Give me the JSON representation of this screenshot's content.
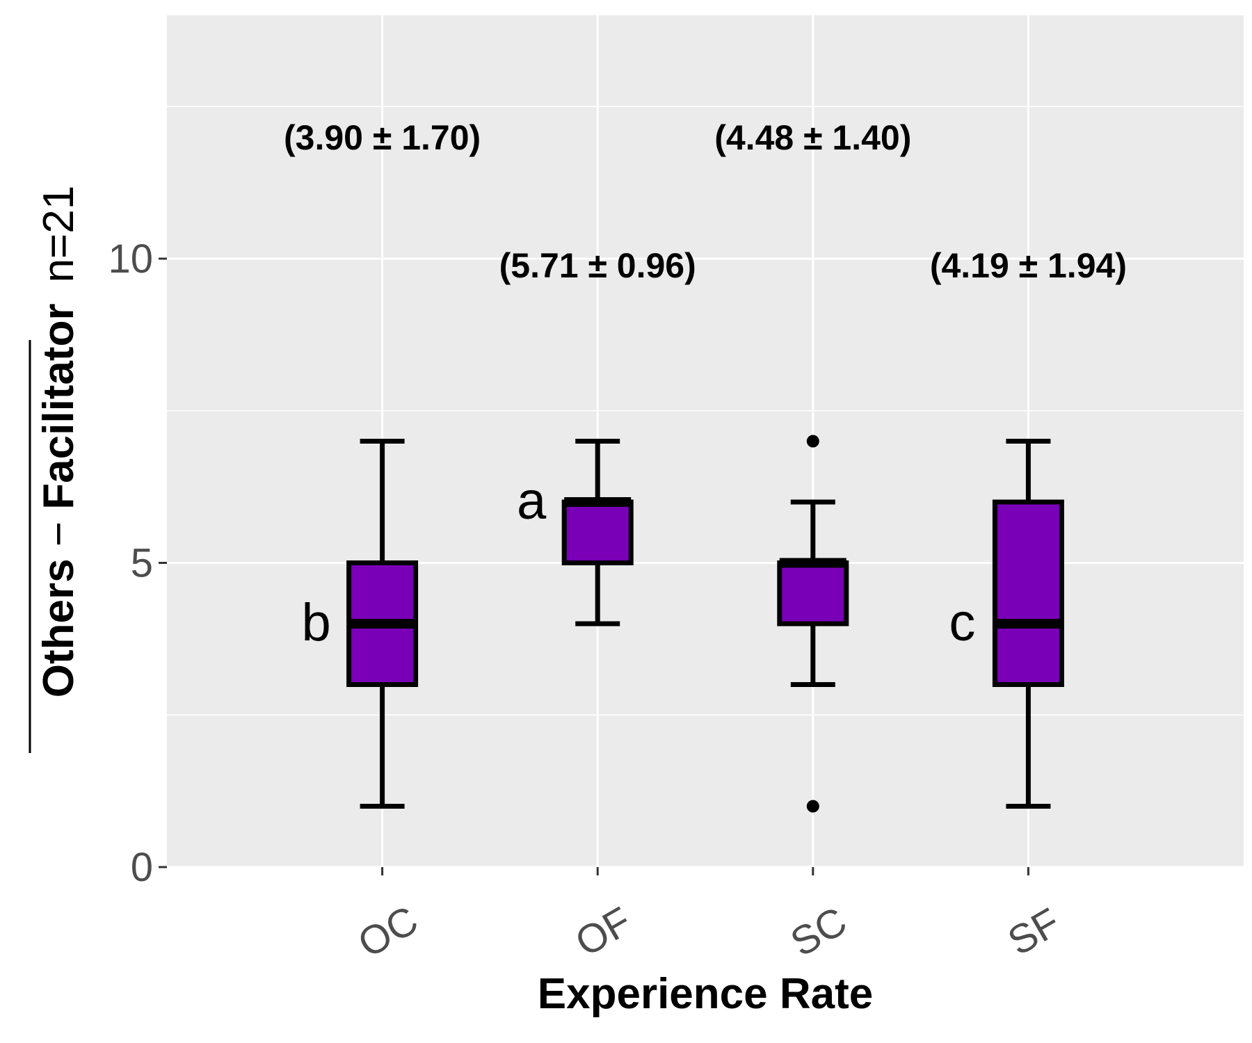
{
  "chart_data": {
    "type": "box",
    "xlabel": "Experience Rate",
    "ylabel_prefix": "Others",
    "ylabel_sep": " − ",
    "ylabel_main": "Facilitator",
    "ylabel_n": "n=21",
    "ylim": [
      0,
      14
    ],
    "yticks": [
      0,
      5,
      10
    ],
    "grid": true,
    "categories": [
      "OC",
      "OF",
      "SC",
      "SF"
    ],
    "boxes": [
      {
        "category": "OC",
        "whisker_low": 1,
        "q1": 3,
        "median": 4,
        "q3": 5,
        "whisker_high": 7,
        "outliers": [],
        "label": "(3.90 ± 1.70)",
        "label_y": 12,
        "letter": "b"
      },
      {
        "category": "OF",
        "whisker_low": 4,
        "q1": 5,
        "median": 6,
        "q3": 6,
        "whisker_high": 7,
        "outliers": [],
        "label": "(5.71 ± 0.96)",
        "label_y": 9.9,
        "letter": "a"
      },
      {
        "category": "SC",
        "whisker_low": 3,
        "q1": 4,
        "median": 5,
        "q3": 5,
        "whisker_high": 6,
        "outliers": [
          1,
          7
        ],
        "label": "(4.48 ± 1.40)",
        "label_y": 12,
        "letter": ""
      },
      {
        "category": "SF",
        "whisker_low": 1,
        "q1": 3,
        "median": 4,
        "q3": 6,
        "whisker_high": 7,
        "outliers": [],
        "label": "(4.19 ± 1.94)",
        "label_y": 9.9,
        "letter": "c"
      }
    ],
    "colors": {
      "box_fill": "#7a00b8",
      "box_stroke": "#000000",
      "panel_bg": "#ebebeb",
      "grid": "#ffffff"
    }
  }
}
